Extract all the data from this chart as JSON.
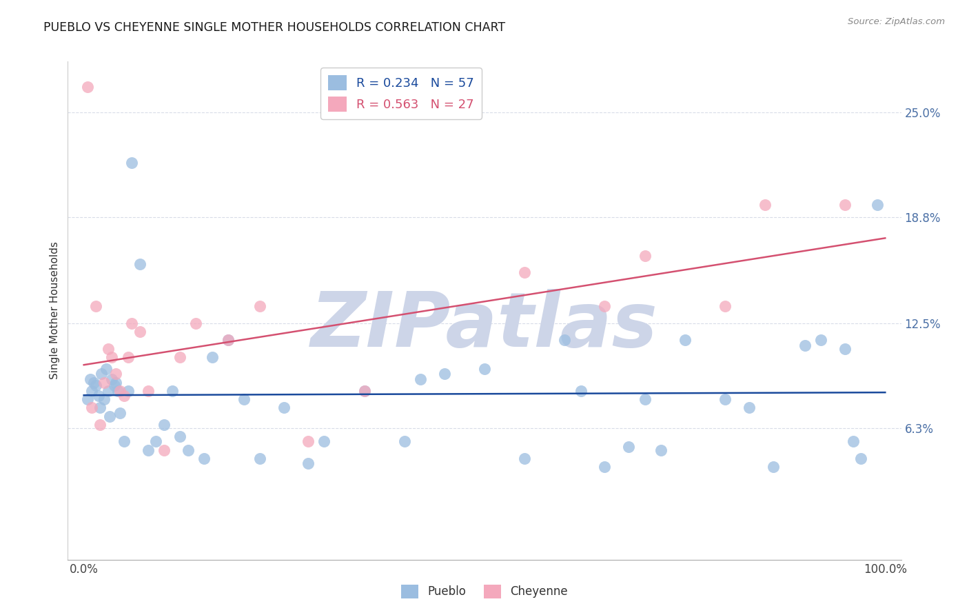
{
  "title": "PUEBLO VS CHEYENNE SINGLE MOTHER HOUSEHOLDS CORRELATION CHART",
  "source": "Source: ZipAtlas.com",
  "ylabel": "Single Mother Households",
  "xlim": [
    -2,
    102
  ],
  "ylim": [
    -1.5,
    28
  ],
  "xticklabels": [
    "0.0%",
    "100.0%"
  ],
  "xtick_positions": [
    0,
    100
  ],
  "ytick_positions": [
    6.3,
    12.5,
    18.8,
    25.0
  ],
  "ytick_labels": [
    "6.3%",
    "12.5%",
    "18.8%",
    "25.0%"
  ],
  "pueblo_color": "#9bbde0",
  "cheyenne_color": "#f4a8bc",
  "pueblo_line_color": "#1a4a9c",
  "cheyenne_line_color": "#d45070",
  "pueblo_R": 0.234,
  "pueblo_N": 57,
  "cheyenne_R": 0.563,
  "cheyenne_N": 27,
  "pueblo_x": [
    0.5,
    0.8,
    1.0,
    1.2,
    1.5,
    1.8,
    2.0,
    2.2,
    2.5,
    2.8,
    3.0,
    3.2,
    3.5,
    3.8,
    4.0,
    4.2,
    4.5,
    5.0,
    5.5,
    6.0,
    7.0,
    8.0,
    9.0,
    10.0,
    11.0,
    12.0,
    13.0,
    15.0,
    16.0,
    18.0,
    20.0,
    22.0,
    25.0,
    28.0,
    30.0,
    35.0,
    40.0,
    42.0,
    45.0,
    50.0,
    55.0,
    60.0,
    62.0,
    65.0,
    68.0,
    70.0,
    72.0,
    75.0,
    80.0,
    83.0,
    86.0,
    90.0,
    92.0,
    95.0,
    96.0,
    97.0,
    99.0
  ],
  "pueblo_y": [
    8.0,
    9.2,
    8.5,
    9.0,
    8.8,
    8.2,
    7.5,
    9.5,
    8.0,
    9.8,
    8.5,
    7.0,
    9.2,
    8.8,
    9.0,
    8.5,
    7.2,
    5.5,
    8.5,
    22.0,
    16.0,
    5.0,
    5.5,
    6.5,
    8.5,
    5.8,
    5.0,
    4.5,
    10.5,
    11.5,
    8.0,
    4.5,
    7.5,
    4.2,
    5.5,
    8.5,
    5.5,
    9.2,
    9.5,
    9.8,
    4.5,
    11.5,
    8.5,
    4.0,
    5.2,
    8.0,
    5.0,
    11.5,
    8.0,
    7.5,
    4.0,
    11.2,
    11.5,
    11.0,
    5.5,
    4.5,
    19.5
  ],
  "cheyenne_x": [
    0.5,
    1.0,
    1.5,
    2.0,
    2.5,
    3.0,
    3.5,
    4.0,
    4.5,
    5.0,
    5.5,
    6.0,
    7.0,
    8.0,
    10.0,
    12.0,
    14.0,
    18.0,
    22.0,
    28.0,
    35.0,
    55.0,
    65.0,
    70.0,
    80.0,
    85.0,
    95.0
  ],
  "cheyenne_y": [
    26.5,
    7.5,
    13.5,
    6.5,
    9.0,
    11.0,
    10.5,
    9.5,
    8.5,
    8.2,
    10.5,
    12.5,
    12.0,
    8.5,
    5.0,
    10.5,
    12.5,
    11.5,
    13.5,
    5.5,
    8.5,
    15.5,
    13.5,
    16.5,
    13.5,
    19.5,
    19.5
  ],
  "watermark_text": "ZIPatlas",
  "watermark_color": "#cdd5e8",
  "background_color": "#ffffff",
  "grid_color": "#d8dce8"
}
